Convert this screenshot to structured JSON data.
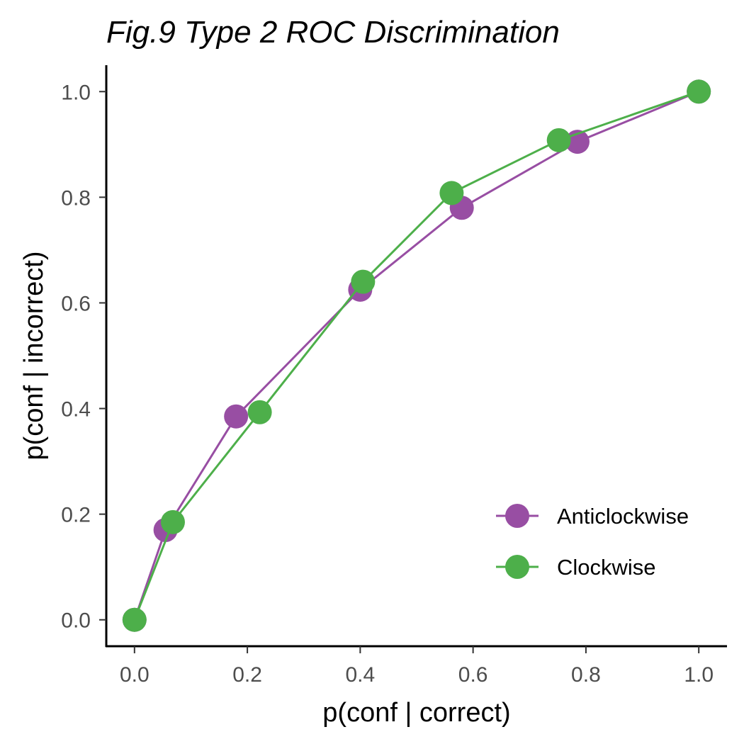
{
  "chart_data": {
    "type": "line",
    "title": "Fig.9 Type 2 ROC Discrimination",
    "xlabel": "p(conf | correct)",
    "ylabel": "p(conf | incorrect)",
    "xlim": [
      -0.05,
      1.05
    ],
    "ylim": [
      -0.05,
      1.05
    ],
    "xticks": [
      0.0,
      0.2,
      0.4,
      0.6,
      0.8,
      1.0
    ],
    "yticks": [
      0.0,
      0.2,
      0.4,
      0.6,
      0.8,
      1.0
    ],
    "xtick_labels": [
      "0.0",
      "0.2",
      "0.4",
      "0.6",
      "0.8",
      "1.0"
    ],
    "ytick_labels": [
      "0.0",
      "0.2",
      "0.4",
      "0.6",
      "0.8",
      "1.0"
    ],
    "grid": false,
    "legend_position": "bottom-right",
    "series": [
      {
        "name": "Anticlockwise",
        "color": "#984EA3",
        "x": [
          0.0,
          0.055,
          0.18,
          0.4,
          0.58,
          0.785,
          1.0
        ],
        "y": [
          0.0,
          0.17,
          0.385,
          0.625,
          0.78,
          0.905,
          1.0
        ]
      },
      {
        "name": "Clockwise",
        "color": "#4DAF4A",
        "x": [
          0.0,
          0.068,
          0.222,
          0.405,
          0.562,
          0.752,
          1.0
        ],
        "y": [
          0.0,
          0.185,
          0.393,
          0.64,
          0.808,
          0.908,
          1.0
        ]
      }
    ]
  }
}
